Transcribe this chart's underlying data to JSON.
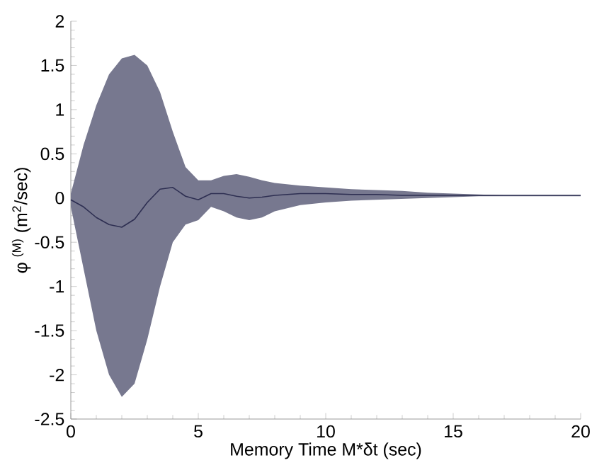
{
  "chart_data": {
    "type": "line",
    "xlabel": "Memory Time M*δt (sec)",
    "ylabel": "φ $^{(M)}$ (m$^{2}$/sec)",
    "x": [
      0,
      0.5,
      1,
      1.5,
      2,
      2.5,
      3,
      3.5,
      4,
      4.5,
      5,
      5.5,
      6,
      6.5,
      7,
      7.5,
      8,
      9,
      10,
      11,
      12,
      13,
      14,
      15,
      16,
      17,
      18,
      19,
      20
    ],
    "series": [
      {
        "color": "#2e2f52",
        "values": [
          -0.02,
          -0.1,
          -0.22,
          -0.3,
          -0.33,
          -0.24,
          -0.05,
          0.1,
          0.12,
          0.02,
          -0.02,
          0.05,
          0.05,
          0.02,
          0,
          0.01,
          0.03,
          0.05,
          0.05,
          0.04,
          0.04,
          0.03,
          0.03,
          0.03,
          0.03,
          0.03,
          0.03,
          0.03,
          0.03
        ],
        "upper": [
          0.05,
          0.6,
          1.05,
          1.4,
          1.58,
          1.62,
          1.5,
          1.2,
          0.75,
          0.35,
          0.2,
          0.2,
          0.25,
          0.27,
          0.24,
          0.2,
          0.17,
          0.14,
          0.12,
          0.1,
          0.09,
          0.08,
          0.06,
          0.05,
          0.04,
          0.03,
          0.03,
          0.03,
          0.03
        ],
        "lower": [
          -0.1,
          -0.8,
          -1.5,
          -2.0,
          -2.25,
          -2.1,
          -1.6,
          -1.0,
          -0.5,
          -0.3,
          -0.25,
          -0.1,
          -0.15,
          -0.22,
          -0.25,
          -0.22,
          -0.15,
          -0.08,
          -0.05,
          -0.03,
          -0.02,
          -0.01,
          0,
          0.01,
          0.02,
          0.02,
          0.02,
          0.02,
          0.02
        ]
      }
    ],
    "xlim": [
      0,
      20
    ],
    "xticks": [
      0,
      5,
      10,
      15,
      20
    ],
    "ylim": [
      -2.5,
      2
    ],
    "yticks": [
      -2.5,
      -2,
      -1.5,
      -1,
      -0.5,
      0,
      0.5,
      1,
      1.5,
      2
    ],
    "marker": "none",
    "line_style": "solid"
  }
}
